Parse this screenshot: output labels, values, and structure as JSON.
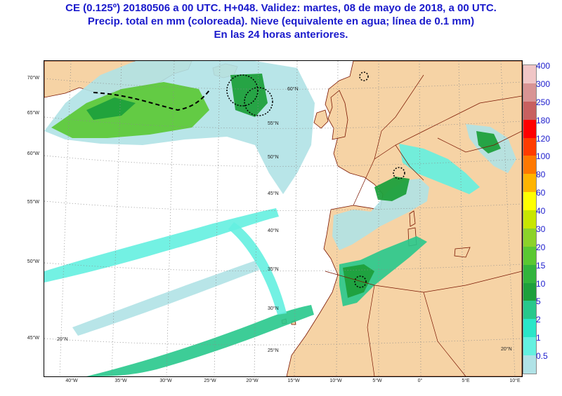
{
  "header": {
    "line1": "CE (0.125º) 20180506 a 00 UTC.  H+048. Validez: martes, 08 de mayo de 2018,  a  00 UTC.",
    "line2": "Precip. total en mm (coloreada). Nieve (equivalente en agua; línea de 0.1 mm)",
    "line3": "En las 24 horas anteriores."
  },
  "map": {
    "left_axis_labels": [
      "70°W",
      "65°W",
      "60°W",
      "55°W",
      "50°W",
      "45°W"
    ],
    "bottom_axis_labels": [
      "40°W",
      "35°W",
      "30°W",
      "25°W",
      "20°W",
      "15°W",
      "10°W",
      "5°W",
      "0°",
      "5°E",
      "10°E"
    ],
    "interior_labels": [
      "60°N",
      "55°N",
      "50°N",
      "45°N",
      "40°N",
      "35°N",
      "30°N",
      "25°N",
      "20°N",
      "20°N"
    ],
    "colors": {
      "land": "#f6d3a5",
      "sea": "#ffffff",
      "graticule": "#8a8a8a",
      "coast": "#7a1500",
      "snow_line": "#000000"
    }
  },
  "legend": {
    "levels": [
      "400",
      "300",
      "250",
      "180",
      "120",
      "100",
      "80",
      "60",
      "40",
      "30",
      "20",
      "15",
      "10",
      "5",
      "2",
      "1",
      "0.5"
    ],
    "colors": [
      "#f0c6c6",
      "#d89494",
      "#c86060",
      "#ff0000",
      "#ff3c00",
      "#ff7800",
      "#ffb400",
      "#ffff00",
      "#c8e600",
      "#8cd22a",
      "#5ac832",
      "#32b43c",
      "#1ea03c",
      "#28c88c",
      "#2ae6c8",
      "#64f0e0",
      "#b0e2e6"
    ]
  }
}
